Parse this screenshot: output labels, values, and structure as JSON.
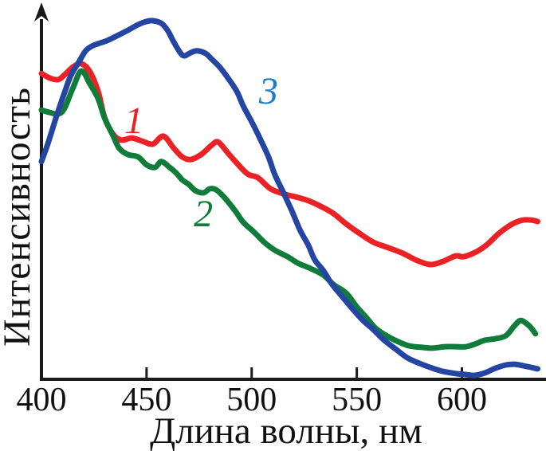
{
  "chart_data": {
    "type": "line",
    "title": "",
    "xlabel": "Длина волны, нм",
    "ylabel": "Интенсивность",
    "xlim": [
      400,
      640
    ],
    "ylim": [
      0,
      105
    ],
    "x_ticks": [
      400,
      450,
      500,
      550,
      600
    ],
    "y_ticks": [],
    "grid": false,
    "axis_color": "#1a1a1a",
    "background": "#ffffff",
    "legend_position": "inline-curve-labels",
    "y_units": "arbitrary (unlabeled axis with arrow)",
    "series": [
      {
        "name": "1",
        "color": "#EC2125",
        "label": {
          "text": "1",
          "x": 444,
          "y": 72.4,
          "color": "#EC2125"
        },
        "points": [
          [
            400,
            85.3
          ],
          [
            404,
            84.0
          ],
          [
            408,
            83.6
          ],
          [
            411,
            84.9
          ],
          [
            415,
            87.1
          ],
          [
            419,
            88.0
          ],
          [
            423,
            85.8
          ],
          [
            427,
            80.2
          ],
          [
            430,
            73.1
          ],
          [
            434,
            68.4
          ],
          [
            438,
            66.7
          ],
          [
            443,
            67.3
          ],
          [
            448,
            66.4
          ],
          [
            453,
            65.6
          ],
          [
            458,
            67.8
          ],
          [
            463,
            64.4
          ],
          [
            467,
            62.0
          ],
          [
            471,
            61.3
          ],
          [
            476,
            62.7
          ],
          [
            481,
            65.3
          ],
          [
            484,
            66.2
          ],
          [
            488,
            63.6
          ],
          [
            492,
            60.9
          ],
          [
            498,
            57.3
          ],
          [
            503,
            56.2
          ],
          [
            509,
            53.1
          ],
          [
            516,
            51.6
          ],
          [
            522,
            50.7
          ],
          [
            527,
            49.8
          ],
          [
            533,
            48.2
          ],
          [
            539,
            46.2
          ],
          [
            545,
            43.3
          ],
          [
            552,
            40.4
          ],
          [
            558,
            38.2
          ],
          [
            565,
            36.7
          ],
          [
            572,
            35.1
          ],
          [
            578,
            33.3
          ],
          [
            585,
            32.0
          ],
          [
            591,
            32.9
          ],
          [
            597,
            34.4
          ],
          [
            601,
            34.2
          ],
          [
            607,
            35.6
          ],
          [
            612,
            37.6
          ],
          [
            618,
            40.9
          ],
          [
            624,
            43.3
          ],
          [
            629,
            44.4
          ],
          [
            633,
            44.4
          ],
          [
            636,
            44.0
          ]
        ]
      },
      {
        "name": "2",
        "color": "#107C3A",
        "label": {
          "text": "2",
          "x": 477,
          "y": 46.4,
          "color": "#107C3A"
        },
        "points": [
          [
            400,
            75.1
          ],
          [
            404,
            74.4
          ],
          [
            408,
            74.0
          ],
          [
            411,
            75.6
          ],
          [
            415,
            81.3
          ],
          [
            419,
            86.0
          ],
          [
            423,
            82.4
          ],
          [
            427,
            78.2
          ],
          [
            430,
            72.9
          ],
          [
            434,
            68.0
          ],
          [
            437,
            64.4
          ],
          [
            441,
            62.7
          ],
          [
            446,
            62.0
          ],
          [
            450,
            59.8
          ],
          [
            454,
            59.1
          ],
          [
            457,
            60.7
          ],
          [
            461,
            59.1
          ],
          [
            464,
            57.6
          ],
          [
            467,
            55.6
          ],
          [
            470,
            54.4
          ],
          [
            473,
            52.7
          ],
          [
            477,
            52.0
          ],
          [
            480,
            53.1
          ],
          [
            483,
            52.9
          ],
          [
            487,
            50.7
          ],
          [
            492,
            47.1
          ],
          [
            496,
            43.8
          ],
          [
            501,
            41.1
          ],
          [
            506,
            38.2
          ],
          [
            511,
            36.0
          ],
          [
            517,
            34.2
          ],
          [
            522,
            32.4
          ],
          [
            528,
            30.9
          ],
          [
            534,
            29.1
          ],
          [
            539,
            26.4
          ],
          [
            545,
            24.0
          ],
          [
            550,
            20.2
          ],
          [
            555,
            16.9
          ],
          [
            559,
            14.2
          ],
          [
            564,
            12.2
          ],
          [
            570,
            10.4
          ],
          [
            575,
            9.3
          ],
          [
            581,
            8.9
          ],
          [
            586,
            8.7
          ],
          [
            592,
            9.1
          ],
          [
            597,
            9.1
          ],
          [
            602,
            9.1
          ],
          [
            607,
            10.0
          ],
          [
            611,
            10.9
          ],
          [
            616,
            11.3
          ],
          [
            621,
            12.2
          ],
          [
            625,
            14.9
          ],
          [
            628,
            16.4
          ],
          [
            632,
            14.9
          ],
          [
            635,
            12.7
          ]
        ]
      },
      {
        "name": "3",
        "color": "#2445A2",
        "label": {
          "text": "3",
          "x": 508,
          "y": 80.7,
          "color": "#1E7CC4"
        },
        "points": [
          [
            400,
            60.7
          ],
          [
            403,
            65.6
          ],
          [
            407,
            73.1
          ],
          [
            411,
            80.0
          ],
          [
            414,
            84.7
          ],
          [
            418,
            88.7
          ],
          [
            421,
            91.6
          ],
          [
            424,
            92.9
          ],
          [
            427,
            93.6
          ],
          [
            431,
            94.4
          ],
          [
            436,
            95.8
          ],
          [
            441,
            97.3
          ],
          [
            446,
            98.9
          ],
          [
            450,
            99.8
          ],
          [
            453,
            100.0
          ],
          [
            457,
            99.3
          ],
          [
            460,
            97.3
          ],
          [
            463,
            94.0
          ],
          [
            466,
            91.1
          ],
          [
            468,
            90.2
          ],
          [
            471,
            91.1
          ],
          [
            474,
            91.6
          ],
          [
            478,
            90.9
          ],
          [
            481,
            89.3
          ],
          [
            485,
            86.9
          ],
          [
            489,
            83.8
          ],
          [
            493,
            80.2
          ],
          [
            496,
            76.2
          ],
          [
            500,
            71.8
          ],
          [
            504,
            67.1
          ],
          [
            508,
            62.0
          ],
          [
            511,
            57.1
          ],
          [
            515,
            52.2
          ],
          [
            519,
            47.1
          ],
          [
            523,
            41.6
          ],
          [
            527,
            37.3
          ],
          [
            530,
            33.3
          ],
          [
            534,
            30.4
          ],
          [
            538,
            26.7
          ],
          [
            543,
            23.1
          ],
          [
            548,
            19.6
          ],
          [
            553,
            16.4
          ],
          [
            558,
            13.8
          ],
          [
            563,
            10.9
          ],
          [
            569,
            8.2
          ],
          [
            574,
            6.0
          ],
          [
            580,
            4.4
          ],
          [
            586,
            3.1
          ],
          [
            591,
            2.2
          ],
          [
            597,
            1.6
          ],
          [
            602,
            1.3
          ],
          [
            606,
            1.1
          ],
          [
            611,
            1.8
          ],
          [
            616,
            3.1
          ],
          [
            621,
            4.0
          ],
          [
            625,
            4.2
          ],
          [
            629,
            3.8
          ],
          [
            633,
            3.3
          ],
          [
            636,
            2.9
          ]
        ]
      }
    ]
  }
}
